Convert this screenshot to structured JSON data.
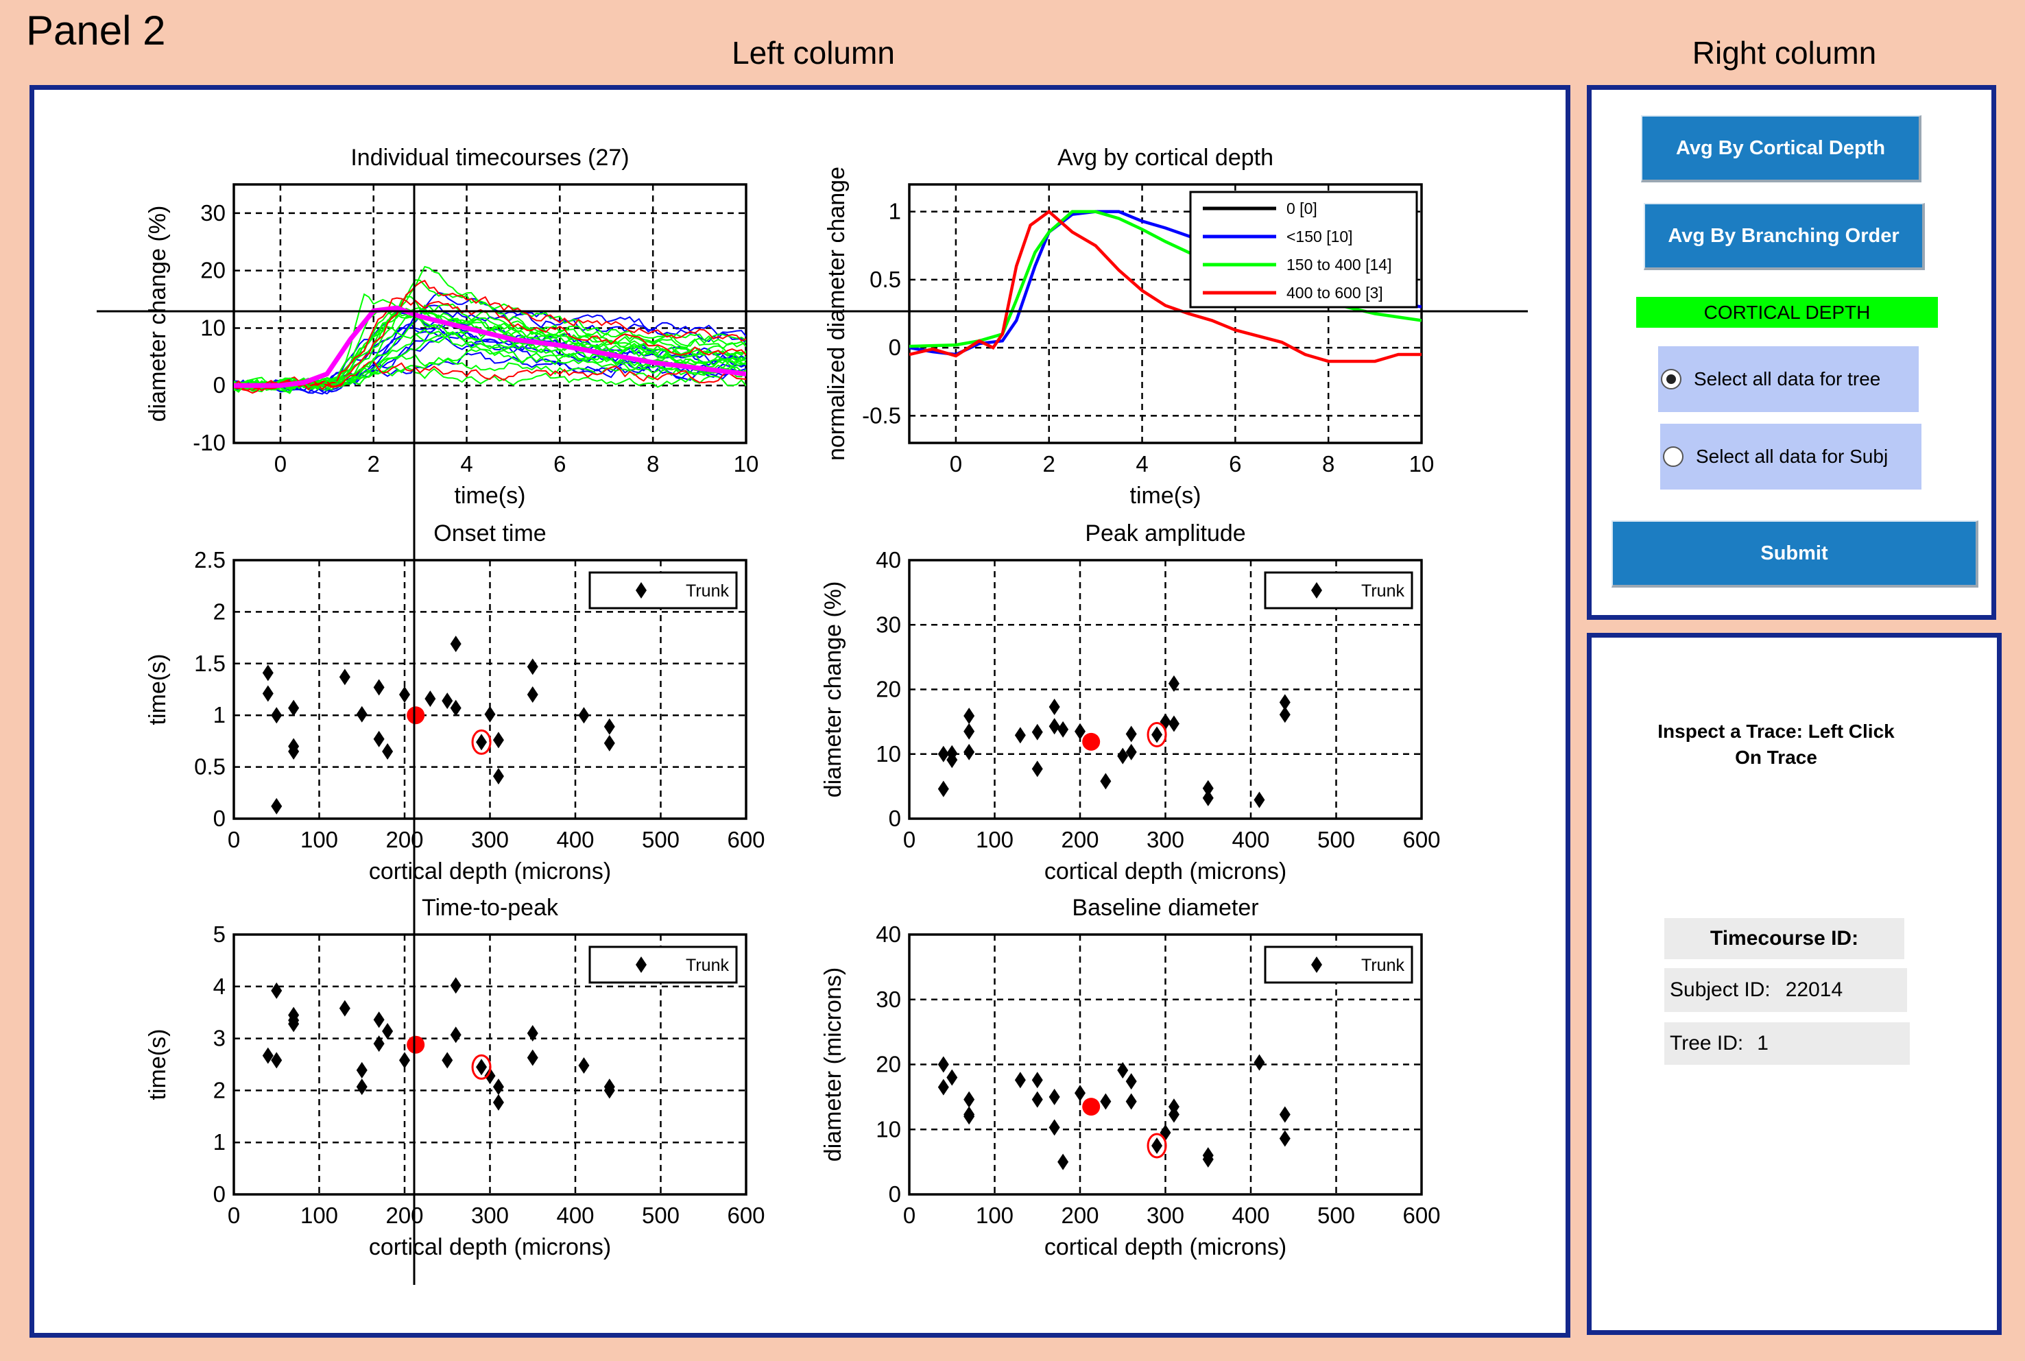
{
  "panel_title": "Panel 2",
  "left_column_title": "Left column",
  "right_column_title": "Right column",
  "controls": {
    "avg_cortical_button": "Avg By Cortical Depth",
    "avg_branching_button": "Avg By Branching Order",
    "mode_label": "CORTICAL DEPTH",
    "radio_tree": "Select all data for tree",
    "radio_subj": "Select all data for Subj",
    "radio_selected": "tree",
    "submit_button": "Submit"
  },
  "inspector": {
    "instructions": "Inspect a Trace: Left Click On Trace",
    "timecourse_label": "Timecourse ID:",
    "subject_label": "Subject ID:",
    "subject_value": "22014",
    "tree_label": "Tree ID:",
    "tree_value": "1"
  },
  "colors": {
    "background": "#F8C9B1",
    "border": "#14288C",
    "button": "#1C7DC2",
    "mode_bar": "#00FF00",
    "radio_bg": "#B9C9F7",
    "selected_point": "#FF0000",
    "mean_trace": "#FF00FF"
  },
  "chart_data": [
    {
      "id": "timecourses",
      "type": "line",
      "title": "Individual timecourses (27)",
      "xlabel": "time(s)",
      "ylabel": "diameter change (%)",
      "xlim": [
        -1,
        10
      ],
      "ylim": [
        -10,
        35
      ],
      "xticks": [
        0,
        2,
        4,
        6,
        8,
        10
      ],
      "yticks": [
        -10,
        0,
        10,
        20,
        30
      ],
      "depth_colors": {
        "<150": "#0000FF",
        "150 to 400": "#00FF00",
        "400 to 600": "#FF0000"
      },
      "mean_trace": {
        "x": [
          -1,
          0,
          0.5,
          1,
          1.5,
          2,
          2.5,
          3,
          4,
          5,
          6,
          7,
          8,
          9,
          10
        ],
        "y": [
          0,
          0,
          0.5,
          2,
          8,
          13,
          13.5,
          12,
          10,
          8,
          7,
          5.5,
          4,
          3,
          2
        ]
      }
    },
    {
      "id": "avg_depth",
      "type": "line",
      "title": "Avg by cortical depth",
      "xlabel": "time(s)",
      "ylabel": "normalized diameter change",
      "xlim": [
        -1,
        10
      ],
      "ylim": [
        -0.7,
        1.2
      ],
      "xticks": [
        0,
        2,
        4,
        6,
        8,
        10
      ],
      "yticks": [
        -0.5,
        0,
        0.5,
        1
      ],
      "legend_position": "top-right",
      "series": [
        {
          "name": "0 [0]",
          "color": "#000000",
          "x": [],
          "y": []
        },
        {
          "name": "<150 [10]",
          "color": "#0000FF",
          "x": [
            -1,
            -0.5,
            0,
            0.5,
            1,
            1.3,
            1.7,
            2,
            2.5,
            3,
            3.5,
            4,
            4.5,
            5,
            6,
            7,
            8,
            9,
            10
          ],
          "y": [
            0,
            -0.03,
            -0.05,
            0.03,
            0.05,
            0.2,
            0.6,
            0.85,
            0.98,
            1,
            1,
            0.93,
            0.88,
            0.82,
            0.7,
            0.55,
            0.45,
            0.35,
            0.3
          ]
        },
        {
          "name": "150 to 400 [14]",
          "color": "#00FF00",
          "x": [
            -1,
            0,
            0.5,
            1,
            1.3,
            1.7,
            2,
            2.5,
            3,
            3.5,
            4,
            4.5,
            5,
            6,
            7,
            8,
            9,
            10
          ],
          "y": [
            0.01,
            0.02,
            0.05,
            0.1,
            0.35,
            0.7,
            0.85,
            1,
            1,
            0.95,
            0.87,
            0.78,
            0.7,
            0.55,
            0.42,
            0.33,
            0.25,
            0.2
          ]
        },
        {
          "name": "400 to 600 [3]",
          "color": "#FF0000",
          "x": [
            -1,
            -0.5,
            0,
            0.5,
            0.8,
            1,
            1.3,
            1.6,
            2,
            2.5,
            3,
            3.5,
            4,
            4.5,
            5,
            5.5,
            6,
            7,
            7.5,
            8,
            9,
            9.5,
            10
          ],
          "y": [
            -0.05,
            -0.01,
            -0.06,
            0.05,
            0,
            0.1,
            0.6,
            0.9,
            1,
            0.85,
            0.75,
            0.57,
            0.42,
            0.31,
            0.25,
            0.2,
            0.13,
            0.04,
            -0.05,
            -0.1,
            -0.1,
            -0.05,
            -0.05
          ]
        }
      ]
    },
    {
      "id": "onset",
      "type": "scatter",
      "title": "Onset time",
      "xlabel": "cortical depth (microns)",
      "ylabel": "time(s)",
      "xlim": [
        0,
        600
      ],
      "ylim": [
        0,
        2.5
      ],
      "xticks": [
        0,
        100,
        200,
        300,
        400,
        500,
        600
      ],
      "yticks": [
        0,
        0.5,
        1,
        1.5,
        2,
        2.5
      ],
      "legend": "Trunk",
      "legend_position": "top-right",
      "points": [
        [
          40,
          1.41
        ],
        [
          40,
          1.21
        ],
        [
          50,
          1.0
        ],
        [
          50,
          0.12
        ],
        [
          70,
          1.07
        ],
        [
          70,
          0.7
        ],
        [
          70,
          0.65
        ],
        [
          130,
          1.37
        ],
        [
          150,
          1.01
        ],
        [
          170,
          1.27
        ],
        [
          170,
          0.77
        ],
        [
          180,
          0.65
        ],
        [
          200,
          1.2
        ],
        [
          230,
          1.16
        ],
        [
          250,
          1.14
        ],
        [
          260,
          1.69
        ],
        [
          260,
          1.07
        ],
        [
          300,
          1.01
        ],
        [
          310,
          0.76
        ],
        [
          310,
          0.41
        ],
        [
          350,
          1.47
        ],
        [
          350,
          1.2
        ],
        [
          410,
          1.0
        ],
        [
          440,
          0.89
        ],
        [
          440,
          0.73
        ]
      ],
      "selected": [
        213,
        1.0
      ],
      "highlighted": [
        290,
        0.74
      ]
    },
    {
      "id": "peak",
      "type": "scatter",
      "title": "Peak amplitude",
      "xlabel": "cortical depth (microns)",
      "ylabel": "diameter change (%)",
      "xlim": [
        0,
        600
      ],
      "ylim": [
        0,
        40
      ],
      "xticks": [
        0,
        100,
        200,
        300,
        400,
        500,
        600
      ],
      "yticks": [
        0,
        10,
        20,
        30,
        40
      ],
      "legend": "Trunk",
      "legend_position": "top-right",
      "points": [
        [
          40,
          10
        ],
        [
          40,
          4.6
        ],
        [
          50,
          10.1
        ],
        [
          50,
          9.1
        ],
        [
          70,
          15.9
        ],
        [
          70,
          13.5
        ],
        [
          70,
          10.3
        ],
        [
          130,
          12.9
        ],
        [
          150,
          13.4
        ],
        [
          150,
          7.7
        ],
        [
          170,
          17.3
        ],
        [
          170,
          14.3
        ],
        [
          180,
          13.8
        ],
        [
          200,
          13.5
        ],
        [
          230,
          5.8
        ],
        [
          250,
          9.7
        ],
        [
          260,
          13.1
        ],
        [
          260,
          10.3
        ],
        [
          300,
          15
        ],
        [
          310,
          20.9
        ],
        [
          310,
          14.7
        ],
        [
          350,
          4.7
        ],
        [
          350,
          3.2
        ],
        [
          410,
          2.9
        ],
        [
          440,
          18
        ],
        [
          440,
          16.1
        ]
      ],
      "selected": [
        213,
        11.9
      ],
      "highlighted": [
        290,
        13
      ]
    },
    {
      "id": "ttp",
      "type": "scatter",
      "title": "Time-to-peak",
      "xlabel": "cortical depth (microns)",
      "ylabel": "time(s)",
      "xlim": [
        0,
        600
      ],
      "ylim": [
        0,
        5
      ],
      "xticks": [
        0,
        100,
        200,
        300,
        400,
        500,
        600
      ],
      "yticks": [
        0,
        1,
        2,
        3,
        4,
        5
      ],
      "legend": "Trunk",
      "legend_position": "top-right",
      "points": [
        [
          40,
          2.67
        ],
        [
          50,
          3.92
        ],
        [
          50,
          2.58
        ],
        [
          70,
          3.45
        ],
        [
          70,
          3.35
        ],
        [
          70,
          3.28
        ],
        [
          130,
          3.58
        ],
        [
          150,
          2.39
        ],
        [
          150,
          2.07
        ],
        [
          170,
          3.36
        ],
        [
          170,
          2.9
        ],
        [
          180,
          3.14
        ],
        [
          200,
          2.58
        ],
        [
          250,
          2.58
        ],
        [
          260,
          4.02
        ],
        [
          260,
          3.07
        ],
        [
          300,
          2.28
        ],
        [
          310,
          2.07
        ],
        [
          310,
          1.77
        ],
        [
          350,
          3.1
        ],
        [
          350,
          2.63
        ],
        [
          410,
          2.48
        ],
        [
          440,
          2.07
        ],
        [
          440,
          2.0
        ]
      ],
      "selected": [
        213,
        2.88
      ],
      "highlighted": [
        290,
        2.45
      ]
    },
    {
      "id": "baseline",
      "type": "scatter",
      "title": "Baseline diameter",
      "xlabel": "cortical depth (microns)",
      "ylabel": "diameter (microns)",
      "xlim": [
        0,
        600
      ],
      "ylim": [
        0,
        40
      ],
      "xticks": [
        0,
        100,
        200,
        300,
        400,
        500,
        600
      ],
      "yticks": [
        0,
        10,
        20,
        30,
        40
      ],
      "legend": "Trunk",
      "legend_position": "top-right",
      "points": [
        [
          40,
          20
        ],
        [
          40,
          16.5
        ],
        [
          50,
          18
        ],
        [
          70,
          14.6
        ],
        [
          70,
          12.3
        ],
        [
          70,
          12
        ],
        [
          130,
          17.6
        ],
        [
          150,
          17.6
        ],
        [
          150,
          14.6
        ],
        [
          170,
          15
        ],
        [
          170,
          10.3
        ],
        [
          180,
          5
        ],
        [
          200,
          15.6
        ],
        [
          230,
          14.3
        ],
        [
          250,
          19.1
        ],
        [
          260,
          17.4
        ],
        [
          260,
          14.3
        ],
        [
          300,
          9.5
        ],
        [
          310,
          13.5
        ],
        [
          310,
          12.3
        ],
        [
          350,
          6
        ],
        [
          350,
          5.4
        ],
        [
          410,
          20.3
        ],
        [
          440,
          12.3
        ],
        [
          440,
          8.6
        ]
      ],
      "selected": [
        213,
        13.5
      ],
      "highlighted": [
        290,
        7.5
      ]
    }
  ]
}
